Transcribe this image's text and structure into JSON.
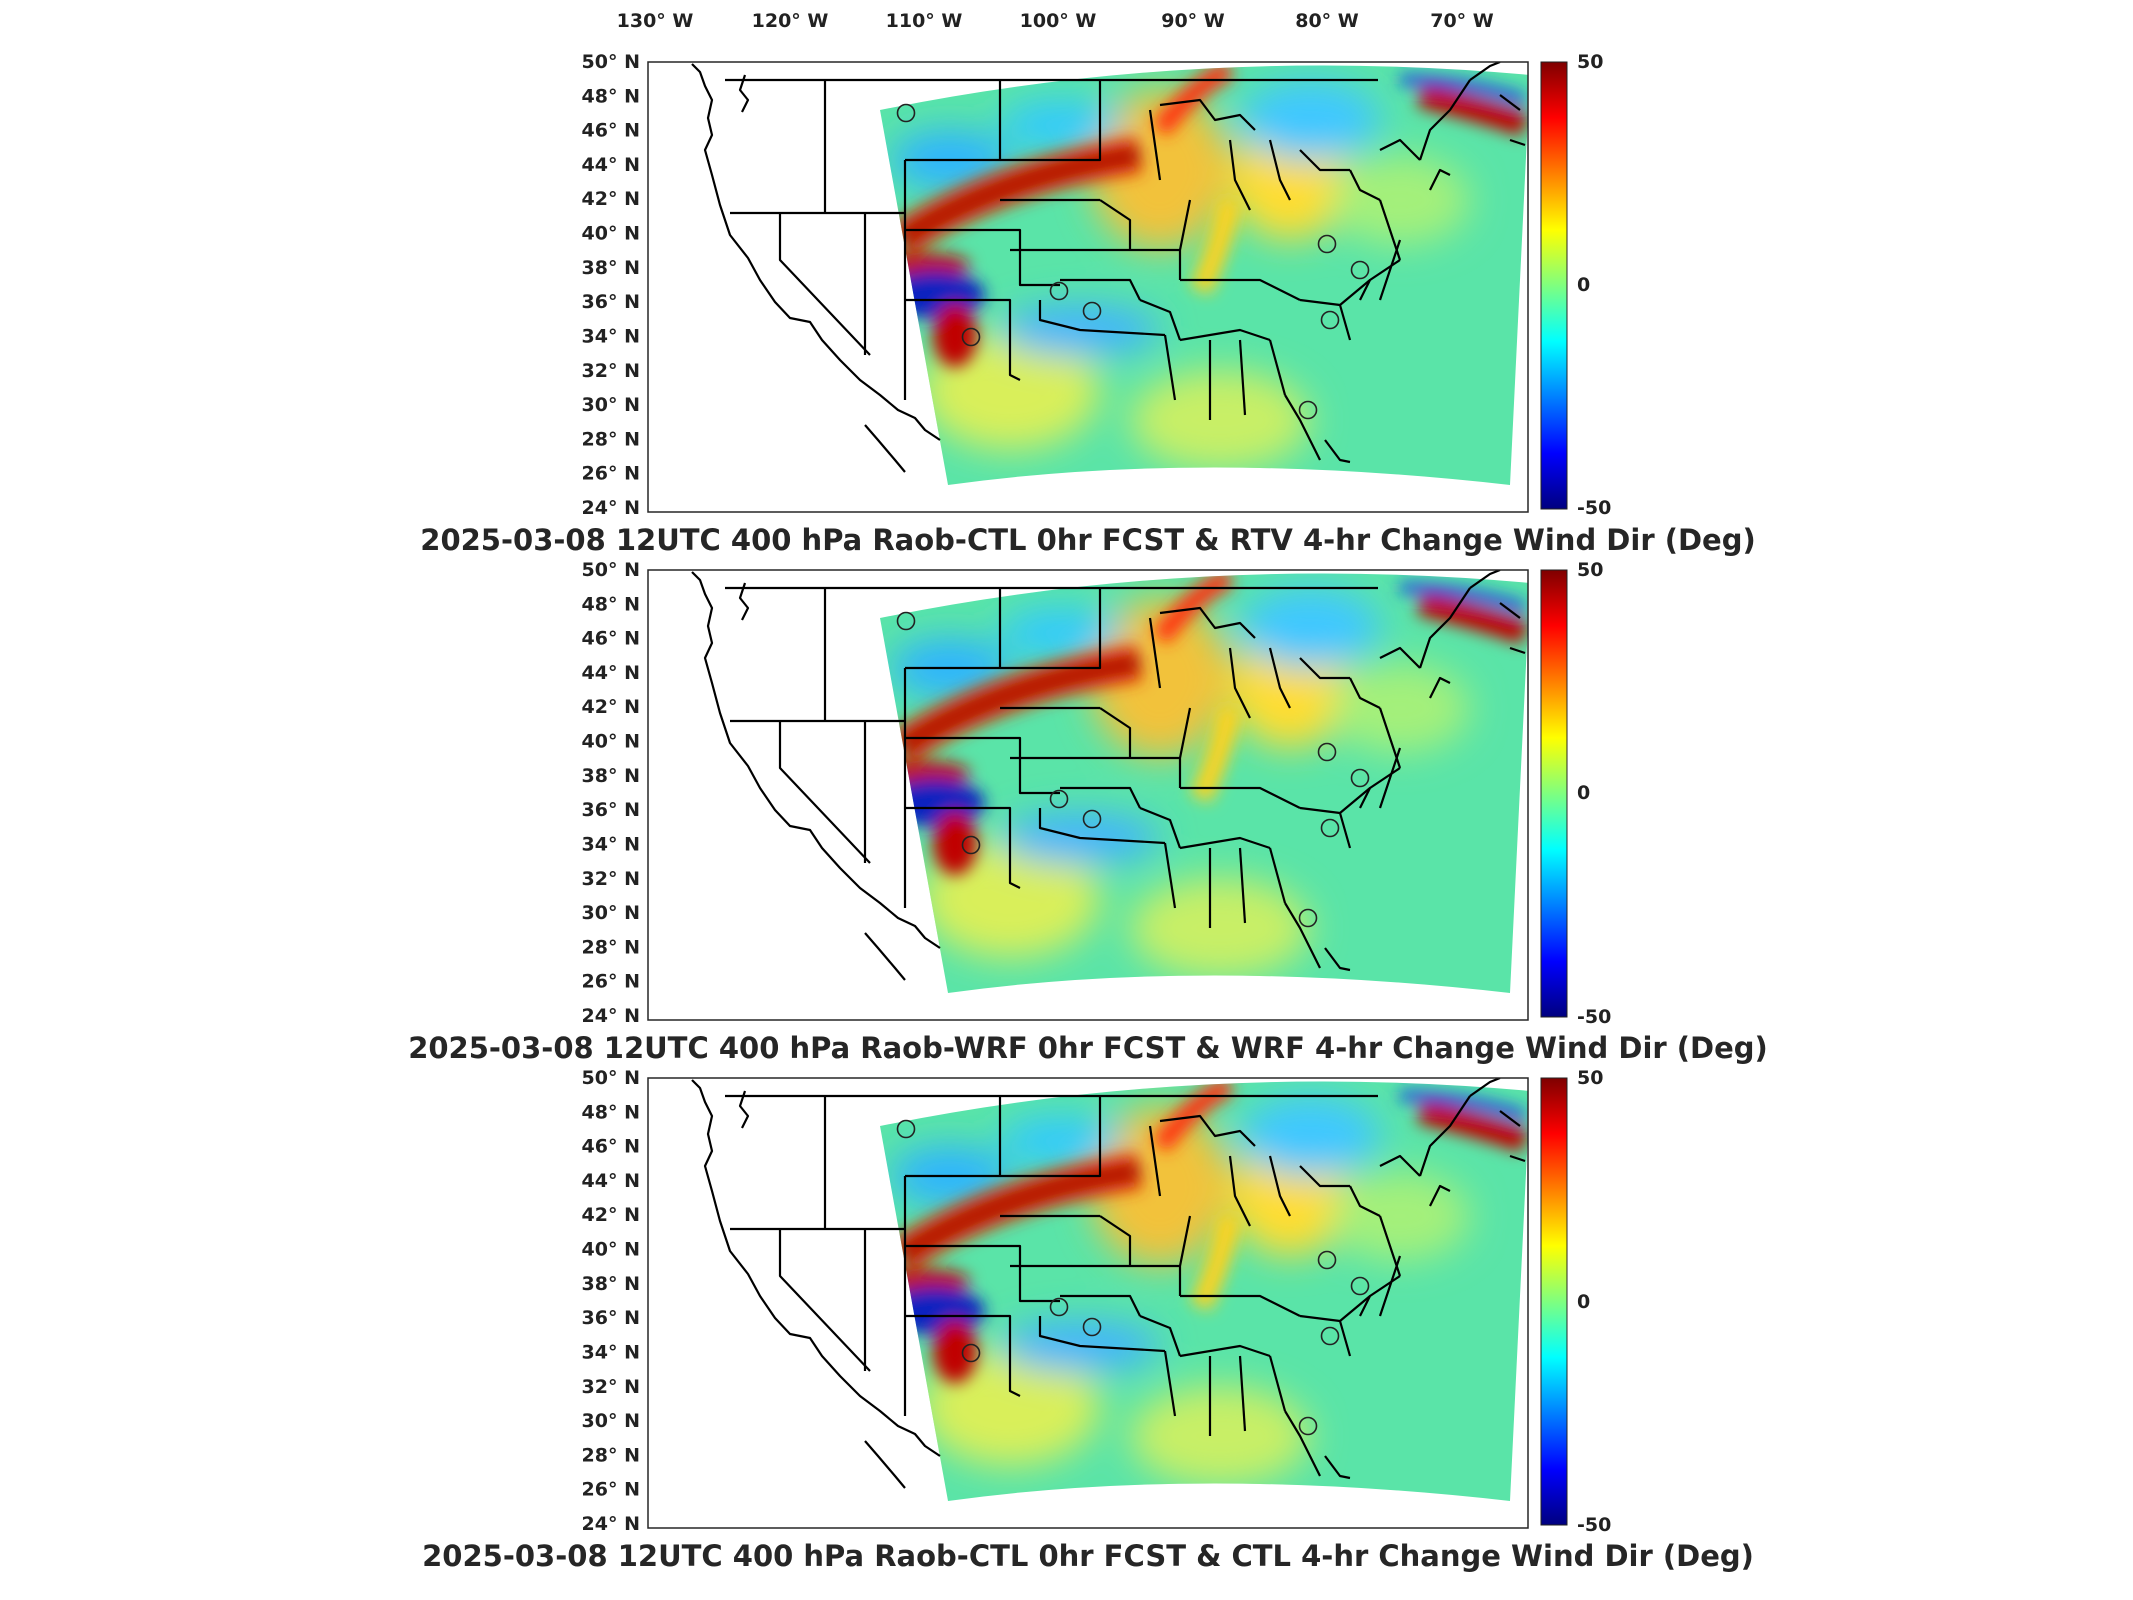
{
  "lon_labels": [
    "130° W",
    "120° W",
    "110° W",
    "100° W",
    "90° W",
    "80° W",
    "70° W"
  ],
  "lat_labels": [
    "50° N",
    "48° N",
    "46° N",
    "44° N",
    "42° N",
    "40° N",
    "38° N",
    "36° N",
    "34° N",
    "32° N",
    "30° N",
    "28° N",
    "26° N",
    "24° N"
  ],
  "colorbar": {
    "max_label": "50",
    "mid_label": "0",
    "min_label": "-50",
    "colormap": "jet"
  },
  "panels": [
    {
      "title": "2025-03-08 12UTC 400 hPa Raob-CTL 0hr FCST & RTV 4-hr Change Wind Dir (Deg)"
    },
    {
      "title": "2025-03-08 12UTC 400 hPa Raob-WRF 0hr FCST & WRF 4-hr Change Wind Dir (Deg)"
    },
    {
      "title": "2025-03-08 12UTC 400 hPa Raob-CTL 0hr FCST & CTL 4-hr Change Wind Dir (Deg)"
    }
  ],
  "raob_station_markers": 8,
  "colors": {
    "jet_low": "#00007f",
    "jet_mid": "#7fff7f",
    "jet_high": "#7f0000",
    "field_base": "#59e6a6"
  }
}
